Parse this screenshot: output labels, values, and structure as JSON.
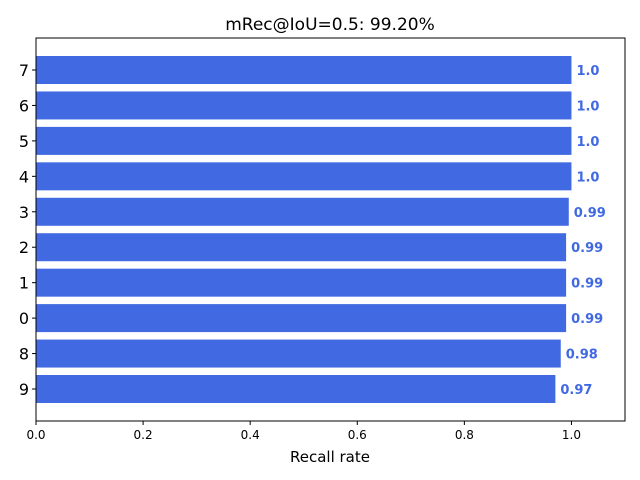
{
  "chart_data": {
    "type": "bar",
    "orientation": "horizontal",
    "title": "mRec@IoU=0.5: 99.20%",
    "xlabel": "Recall rate",
    "ylabel": "",
    "xlim": [
      0,
      1.1
    ],
    "xticks": [
      0.0,
      0.2,
      0.4,
      0.6,
      0.8,
      1.0
    ],
    "xtick_labels": [
      "0.0",
      "0.2",
      "0.4",
      "0.6",
      "0.8",
      "1.0"
    ],
    "categories": [
      "9",
      "8",
      "0",
      "1",
      "2",
      "3",
      "4",
      "5",
      "6",
      "7"
    ],
    "values": [
      0.97,
      0.98,
      0.99,
      0.99,
      0.99,
      0.995,
      1.0,
      1.0,
      1.0,
      1.0
    ],
    "value_labels": [
      "0.97",
      "0.98",
      "0.99",
      "0.99",
      "0.99",
      "0.99",
      "1.0",
      "1.0",
      "1.0",
      "1.0"
    ],
    "bar_color": "#4169e1",
    "label_color": "#4169e1",
    "grid": false,
    "legend": "none"
  }
}
